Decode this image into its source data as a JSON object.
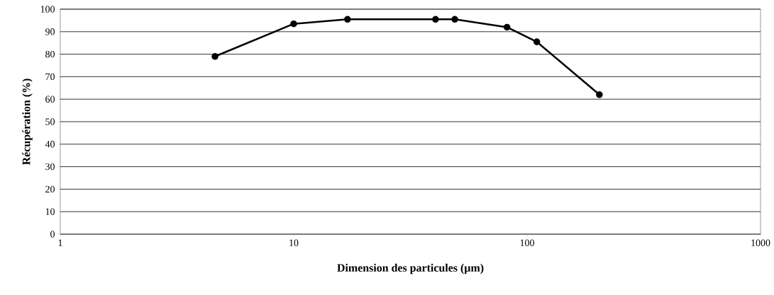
{
  "chart_data": {
    "type": "line",
    "xlabel": "**Dimension des particules (µm)**",
    "ylabel": "**Récupération (%)**",
    "x": [
      4.6,
      10,
      17,
      40.5,
      49,
      82,
      110,
      204
    ],
    "series": [
      {
        "color": "#000000",
        "values": [
          79,
          93.5,
          95.5,
          95.5,
          95.5,
          92,
          85.5,
          62
        ]
      }
    ],
    "log": "x",
    "xlim": [
      1,
      1000
    ],
    "xticks": [
      1,
      10,
      100,
      1000
    ],
    "ylim": [
      0,
      100
    ],
    "yticks": [
      0,
      10,
      20,
      30,
      40,
      50,
      60,
      70,
      80,
      90,
      100
    ],
    "grid": "y",
    "marker": "circle",
    "line_style": "solid"
  }
}
